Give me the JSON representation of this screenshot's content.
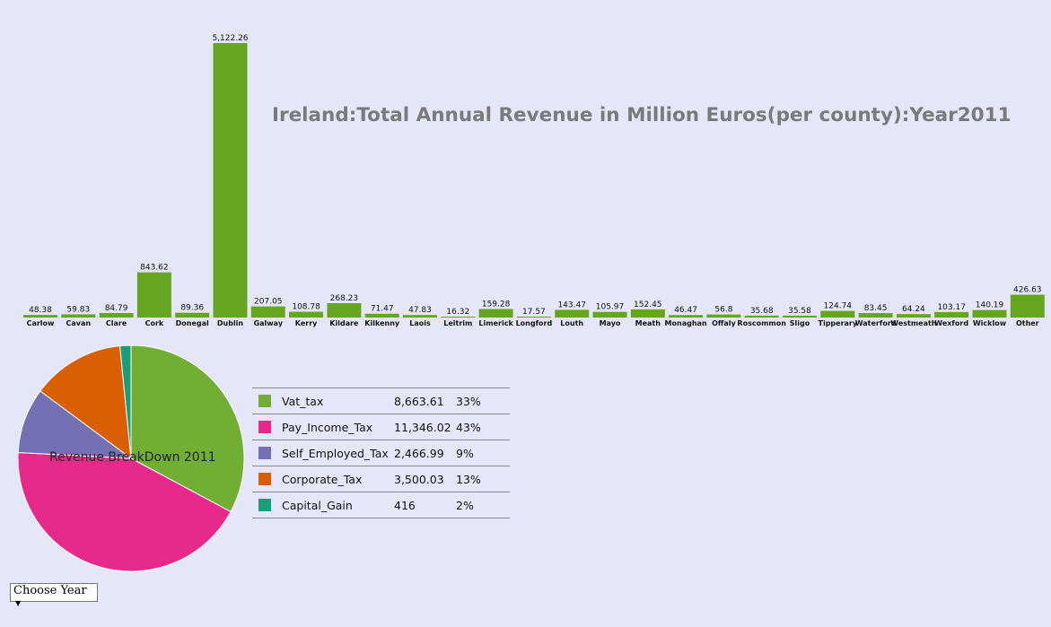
{
  "chart_data": [
    {
      "type": "bar",
      "title": "Ireland:Total Annual Revenue in Million Euros(per county):Year2011",
      "categories": [
        "Carlow",
        "Cavan",
        "Clare",
        "Cork",
        "Donegal",
        "Dublin",
        "Galway",
        "Kerry",
        "Kildare",
        "Kilkenny",
        "Laois",
        "Leitrim",
        "Limerick",
        "Longford",
        "Louth",
        "Mayo",
        "Meath",
        "Monaghan",
        "Offaly",
        "Roscommon",
        "Sligo",
        "Tipperary",
        "Waterford",
        "Westmeath",
        "Wexford",
        "Wicklow",
        "Other"
      ],
      "values": [
        48.38,
        59.83,
        84.79,
        843.62,
        89.36,
        5122.26,
        207.05,
        108.78,
        268.23,
        71.47,
        47.83,
        16.32,
        159.28,
        17.57,
        143.47,
        105.97,
        152.45,
        46.47,
        56.8,
        35.68,
        35.58,
        124.74,
        83.45,
        64.24,
        103.17,
        140.19,
        426.63
      ],
      "value_labels": [
        "48.38",
        "59.83",
        "84.79",
        "843.62",
        "89.36",
        "5,122.26",
        "207.05",
        "108.78",
        "268.23",
        "71.47",
        "47.83",
        "16.32",
        "159.28",
        "17.57",
        "143.47",
        "105.97",
        "152.45",
        "46.47",
        "56.8",
        "35.68",
        "35.58",
        "124.74",
        "83.45",
        "64.24",
        "103.17",
        "140.19",
        "426.63"
      ],
      "color": "#66a61e",
      "grid": false
    },
    {
      "type": "pie",
      "title": "Revenue BreakDown 2011",
      "labels": [
        "Vat_tax",
        "Pay_Income_Tax",
        "Self_Employed_Tax",
        "Corporate_Tax",
        "Capital_Gain"
      ],
      "values": [
        8663.61,
        11346.02,
        2466.99,
        3500.03,
        416
      ],
      "value_labels": [
        "8,663.61",
        "11,346.02",
        "2,466.99",
        "3,500.03",
        "416"
      ],
      "percent_labels": [
        "33%",
        "43%",
        "9%",
        "13%",
        "2%"
      ],
      "colors": [
        "#72ad34",
        "#e7298a",
        "#7570b3",
        "#d95f02",
        "#1b9e77"
      ]
    }
  ],
  "controls": {
    "year_select_label": "Choose Year",
    "year_select_arrow": "▼"
  }
}
